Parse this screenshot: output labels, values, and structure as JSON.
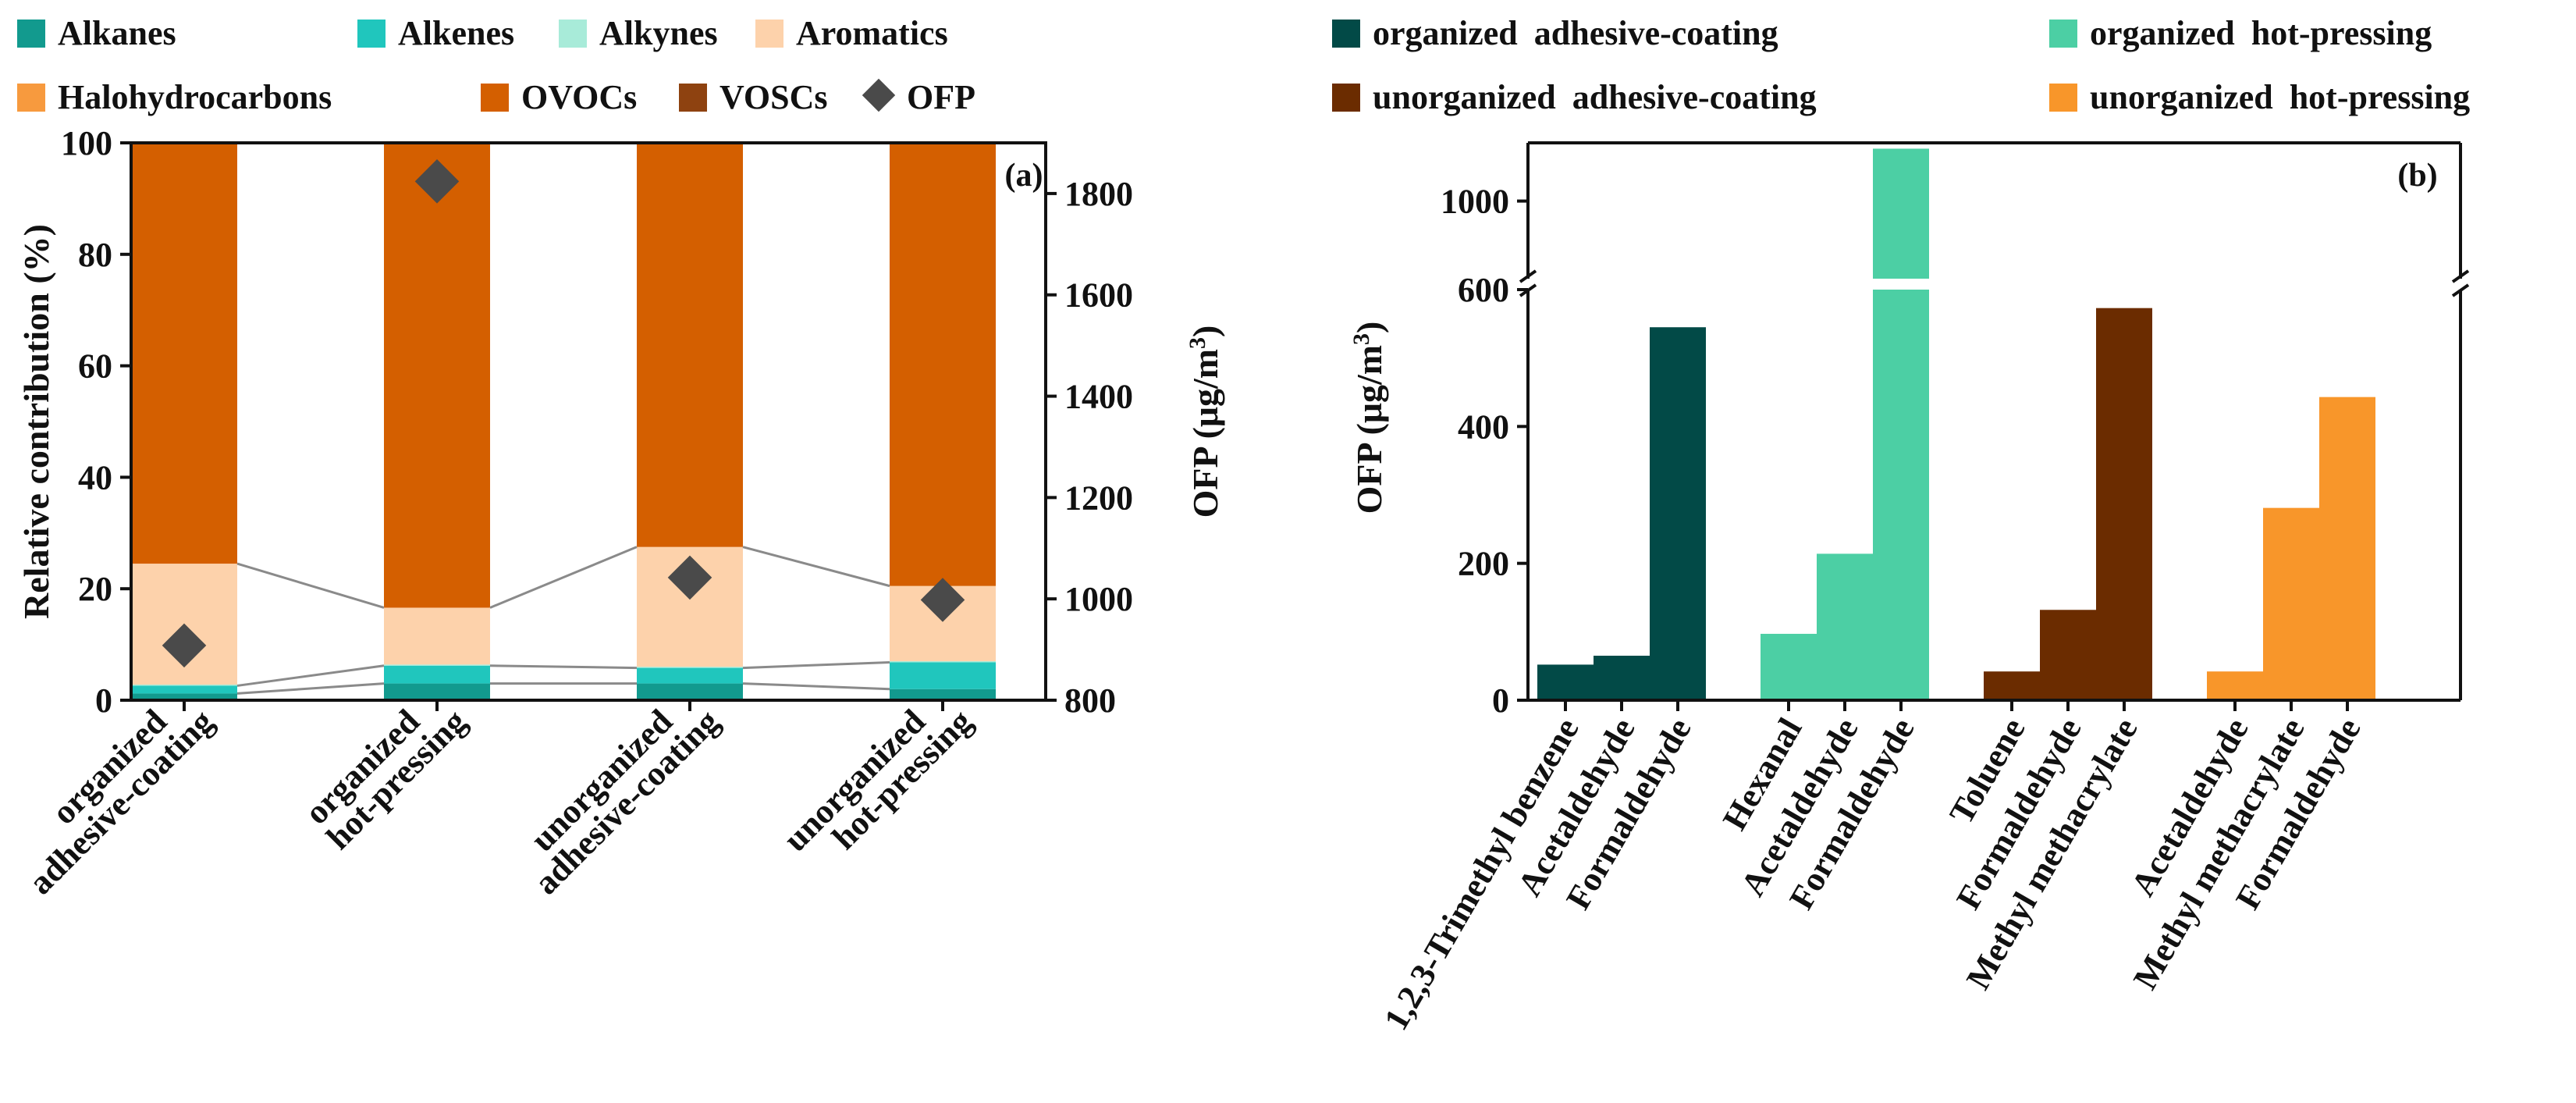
{
  "chart_data": [
    {
      "type": "bar",
      "stacked": true,
      "panel_label": "(a)",
      "categories": [
        [
          "organized",
          "adhesive-coating"
        ],
        [
          "organized",
          "hot-pressing"
        ],
        [
          "unorganized",
          "adhesive-coating"
        ],
        [
          "unorganized",
          "hot-pressing"
        ]
      ],
      "ylabel": "Relative contribution (%)",
      "ylim": [
        0,
        100
      ],
      "yticks": [
        0,
        20,
        40,
        60,
        80,
        100
      ],
      "y2label": "OFP (μg/m3)",
      "y2lim": [
        800,
        1900
      ],
      "y2ticks": [
        800,
        1000,
        1200,
        1400,
        1600,
        1800
      ],
      "series": [
        {
          "name": "Alkanes",
          "color": "#129a8e",
          "values": [
            1.2,
            3.0,
            3.0,
            2.0
          ]
        },
        {
          "name": "Alkenes",
          "color": "#20c6bd",
          "values": [
            1.4,
            3.2,
            2.8,
            4.8
          ]
        },
        {
          "name": "Alkynes",
          "color": "#a8ebd9",
          "values": [
            0.2,
            0.2,
            0.2,
            0.2
          ]
        },
        {
          "name": "Aromatics",
          "color": "#fdd2ab",
          "values": [
            21.7,
            10.2,
            21.5,
            13.5
          ]
        },
        {
          "name": "Halohydrocarbons",
          "color": "#f79a3e",
          "values": [
            0,
            0,
            0,
            0
          ]
        },
        {
          "name": "OVOCs",
          "color": "#d45f00",
          "values": [
            75.5,
            83.4,
            72.5,
            79.5
          ]
        },
        {
          "name": "VOSCs",
          "color": "#8e4210",
          "values": [
            0,
            0,
            0,
            0
          ]
        }
      ],
      "ofp": {
        "name": "OFP",
        "color": "#4a4a4a",
        "values": [
          908,
          1824,
          1042,
          998
        ]
      }
    },
    {
      "type": "bar",
      "panel_label": "(b)",
      "ylabel": "OFP (μg/m3)",
      "broken_axis": true,
      "lower_ylim": [
        0,
        600
      ],
      "lower_yticks": [
        0,
        200,
        400,
        600
      ],
      "upper_ylim": [
        800,
        1150
      ],
      "upper_yticks": [
        1000
      ],
      "groups": [
        {
          "name": "organized adhesive-coating",
          "color": "#024a47",
          "categories": [
            "1,2,3-Trimethyl benzene",
            "Acetaldehyde",
            "Formaldehyde"
          ],
          "values": [
            52,
            65,
            545
          ]
        },
        {
          "name": "organized hot-pressing",
          "color": "#4ccfa4",
          "categories": [
            "Hexanal",
            "Acetaldehyde",
            "Formaldehyde"
          ],
          "values": [
            97,
            214,
            1135
          ]
        },
        {
          "name": "unorganized adhesive-coating",
          "color": "#6b2c00",
          "categories": [
            "Toluene",
            "Formaldehyde",
            "Methyl methacrylate"
          ],
          "values": [
            42,
            132,
            573
          ]
        },
        {
          "name": "unorganized hot-pressing",
          "color": "#f8962a",
          "categories": [
            "Acetaldehyde",
            "Methyl methacrylate",
            "Formaldehyde"
          ],
          "values": [
            42,
            281,
            443
          ]
        }
      ]
    }
  ]
}
